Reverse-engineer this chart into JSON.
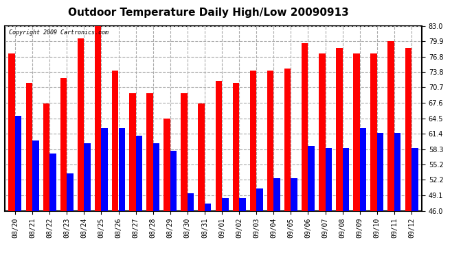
{
  "title": "Outdoor Temperature Daily High/Low 20090913",
  "copyright": "Copyright 2009 Cartronics.com",
  "dates": [
    "08/20",
    "08/21",
    "08/22",
    "08/23",
    "08/24",
    "08/25",
    "08/26",
    "08/27",
    "08/28",
    "08/29",
    "08/30",
    "08/31",
    "09/01",
    "09/02",
    "09/03",
    "09/04",
    "09/05",
    "09/06",
    "09/07",
    "09/08",
    "09/09",
    "09/10",
    "09/11",
    "09/12"
  ],
  "highs": [
    77.5,
    71.5,
    67.5,
    72.5,
    80.5,
    83.5,
    74.0,
    69.5,
    69.5,
    64.5,
    69.5,
    67.5,
    72.0,
    71.5,
    74.0,
    74.0,
    74.5,
    79.5,
    77.5,
    78.5,
    77.5,
    77.5,
    79.9,
    78.5
  ],
  "lows": [
    65.0,
    60.0,
    57.5,
    53.5,
    59.5,
    62.5,
    62.5,
    61.0,
    59.5,
    58.0,
    49.5,
    47.5,
    48.5,
    48.5,
    50.5,
    52.5,
    52.5,
    59.0,
    58.5,
    58.5,
    62.5,
    61.5,
    61.5,
    58.5
  ],
  "high_color": "#ff0000",
  "low_color": "#0000ff",
  "bg_color": "#ffffff",
  "plot_bg_color": "#ffffff",
  "grid_color": "#aaaaaa",
  "ymin": 46.0,
  "ymax": 83.0,
  "yticks": [
    46.0,
    49.1,
    52.2,
    55.2,
    58.3,
    61.4,
    64.5,
    67.6,
    70.7,
    73.8,
    76.8,
    79.9,
    83.0
  ],
  "bar_width": 0.38,
  "title_fontsize": 11,
  "tick_fontsize": 7,
  "copyright_fontsize": 6
}
